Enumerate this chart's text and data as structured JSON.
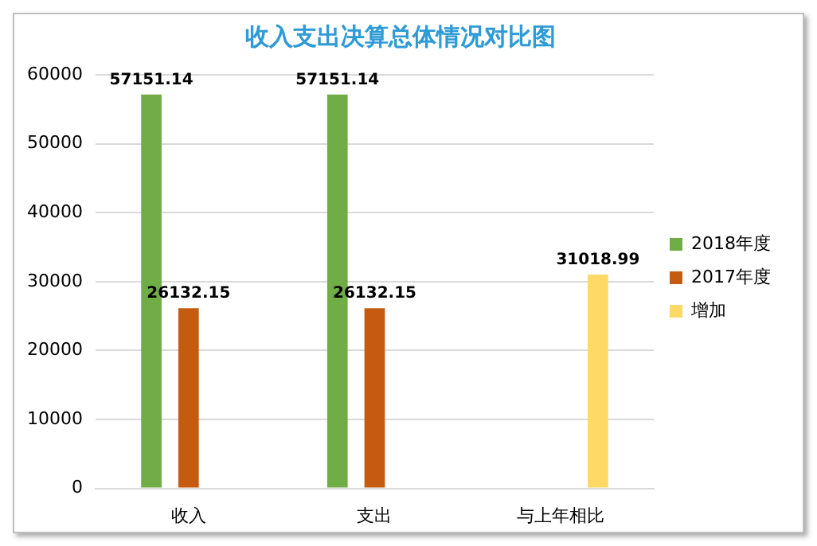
{
  "chart_data": {
    "type": "bar",
    "title": "收入支出决算总体情况对比图",
    "categories": [
      "收入",
      "支出",
      "与上年相比"
    ],
    "series": [
      {
        "name": "2018年度",
        "color": "#70ad47",
        "values": [
          57151.14,
          57151.14,
          null
        ]
      },
      {
        "name": "2017年度",
        "color": "#c55a11",
        "values": [
          26132.15,
          26132.15,
          null
        ]
      },
      {
        "name": "增加",
        "color": "#ffd966",
        "values": [
          null,
          null,
          31018.99
        ]
      }
    ],
    "ylim": [
      0,
      60000
    ],
    "yticks": [
      0,
      10000,
      20000,
      30000,
      40000,
      50000,
      60000
    ],
    "grid": "y",
    "legend": "right",
    "data_labels": true
  }
}
